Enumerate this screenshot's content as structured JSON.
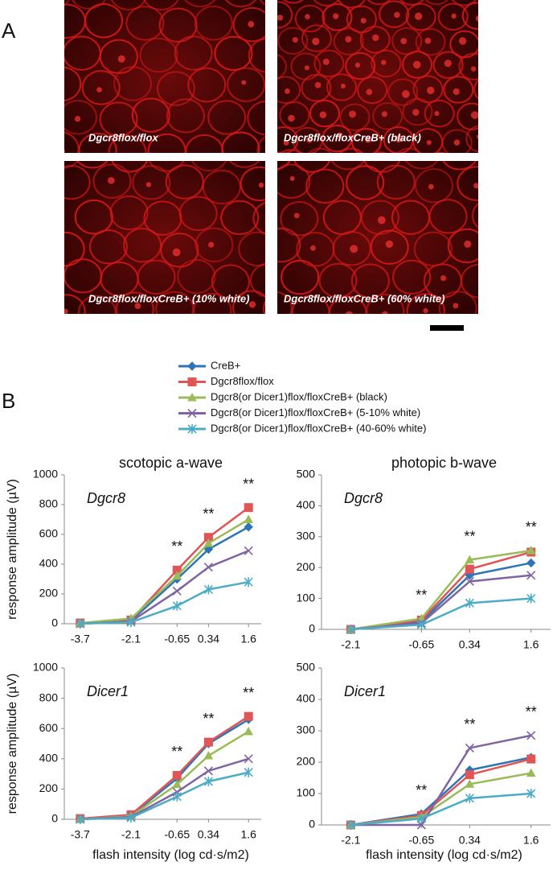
{
  "panel_a": {
    "label": "A",
    "images": [
      {
        "caption": "Dgcr8flox/flox"
      },
      {
        "caption": "Dgcr8flox/floxCreB+ (black)"
      },
      {
        "caption": "Dgcr8flox/floxCreB+ (10% white)"
      },
      {
        "caption": "Dgcr8flox/floxCreB+ (60% white)"
      }
    ]
  },
  "panel_b_label": "B",
  "legend": [
    {
      "name": "CreB+",
      "color": "#2e75b6",
      "marker": "diamond"
    },
    {
      "name": "Dgcr8flox/flox",
      "color": "#e05555",
      "marker": "square"
    },
    {
      "name": "Dgcr8(or Dicer1)flox/floxCreB+ (black)",
      "color": "#9bbb59",
      "marker": "triangle"
    },
    {
      "name": "Dgcr8(or Dicer1)flox/floxCreB+ (5-10% white)",
      "color": "#8064a2",
      "marker": "x"
    },
    {
      "name": "Dgcr8(or Dicer1)flox/floxCreB+ (40-60% white)",
      "color": "#4bacc6",
      "marker": "star"
    }
  ],
  "chart_data": [
    {
      "type": "line",
      "title": "scotopic a-wave",
      "annotation": "Dgcr8",
      "ylabel": "response amplitude (µV)",
      "x": [
        -3.7,
        -2.1,
        -0.65,
        0.34,
        1.6
      ],
      "xlim": [
        -4.2,
        2.0
      ],
      "xticks": [
        -3.7,
        -2.1,
        -0.65,
        0.34,
        1.6
      ],
      "ylim": [
        0,
        1000
      ],
      "yticks": [
        0,
        200,
        400,
        600,
        800,
        1000
      ],
      "series": [
        {
          "values": [
            0,
            20,
            300,
            500,
            650
          ]
        },
        {
          "values": [
            5,
            25,
            360,
            580,
            780
          ]
        },
        {
          "values": [
            5,
            35,
            320,
            540,
            700
          ]
        },
        {
          "values": [
            0,
            15,
            220,
            380,
            490
          ]
        },
        {
          "values": [
            0,
            10,
            120,
            230,
            280
          ]
        }
      ],
      "significance": [
        {
          "x": -0.65,
          "label": "**"
        },
        {
          "x": 0.34,
          "label": "**"
        },
        {
          "x": 1.6,
          "label": "**"
        }
      ]
    },
    {
      "type": "line",
      "title": "photopic b-wave",
      "annotation": "Dgcr8",
      "x": [
        -2.1,
        -0.65,
        0.34,
        1.6
      ],
      "xlim": [
        -2.7,
        2.0
      ],
      "xticks": [
        -2.1,
        -0.65,
        0.34,
        1.6
      ],
      "ylim": [
        0,
        500
      ],
      "yticks": [
        0,
        100,
        200,
        300,
        400,
        500
      ],
      "series": [
        {
          "values": [
            0,
            25,
            175,
            215
          ]
        },
        {
          "values": [
            0,
            30,
            195,
            250
          ]
        },
        {
          "values": [
            0,
            35,
            225,
            255
          ]
        },
        {
          "values": [
            0,
            20,
            155,
            175
          ]
        },
        {
          "values": [
            0,
            15,
            85,
            100
          ]
        }
      ],
      "significance": [
        {
          "x": -0.65,
          "label": "**"
        },
        {
          "x": 0.34,
          "label": "**"
        },
        {
          "x": 1.6,
          "label": "**"
        }
      ]
    },
    {
      "type": "line",
      "annotation": "Dicer1",
      "ylabel": "response amplitude (µV)",
      "xlabel": "flash intensity (log cd·s/m2)",
      "x": [
        -3.7,
        -2.1,
        -0.65,
        0.34,
        1.6
      ],
      "xlim": [
        -4.2,
        2.0
      ],
      "xticks": [
        -3.7,
        -2.1,
        -0.65,
        0.34,
        1.6
      ],
      "ylim": [
        0,
        1000
      ],
      "yticks": [
        0,
        200,
        400,
        600,
        800,
        1000
      ],
      "series": [
        {
          "values": [
            0,
            25,
            270,
            500,
            660
          ]
        },
        {
          "values": [
            5,
            30,
            290,
            510,
            680
          ]
        },
        {
          "values": [
            0,
            20,
            230,
            420,
            580
          ]
        },
        {
          "values": [
            0,
            15,
            180,
            320,
            400
          ]
        },
        {
          "values": [
            0,
            10,
            150,
            250,
            310
          ]
        }
      ],
      "significance": [
        {
          "x": -0.65,
          "label": "**"
        },
        {
          "x": 0.34,
          "label": "**"
        },
        {
          "x": 1.6,
          "label": "**"
        }
      ]
    },
    {
      "type": "line",
      "annotation": "Dicer1",
      "xlabel": "flash intensity (log cd·s/m2)",
      "x": [
        -2.1,
        -0.65,
        0.34,
        1.6
      ],
      "xlim": [
        -2.7,
        2.0
      ],
      "xticks": [
        -2.1,
        -0.65,
        0.34,
        1.6
      ],
      "ylim": [
        0,
        500
      ],
      "yticks": [
        0,
        100,
        200,
        300,
        400,
        500
      ],
      "series": [
        {
          "values": [
            0,
            35,
            175,
            215
          ]
        },
        {
          "values": [
            0,
            30,
            160,
            210
          ]
        },
        {
          "values": [
            0,
            25,
            130,
            165
          ]
        },
        {
          "values": [
            0,
            0,
            245,
            285
          ]
        },
        {
          "values": [
            0,
            20,
            85,
            100
          ]
        }
      ],
      "significance": [
        {
          "x": -0.65,
          "label": "**"
        },
        {
          "x": 0.34,
          "label": "**"
        },
        {
          "x": 1.6,
          "label": "**"
        }
      ]
    }
  ]
}
